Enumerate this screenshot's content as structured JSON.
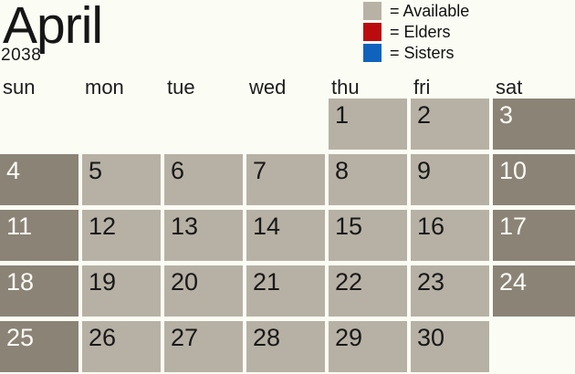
{
  "title": {
    "month": "April",
    "year": "2038"
  },
  "legend": {
    "items": [
      {
        "name": "available",
        "label": "= Available",
        "color": "#b8b2a6"
      },
      {
        "name": "elders",
        "label": "= Elders",
        "color": "#bb0b0e"
      },
      {
        "name": "sisters",
        "label": "= Sisters",
        "color": "#0f63bd"
      }
    ]
  },
  "colors": {
    "background": "#fbfdf4",
    "weekday_cell": "#b7b1a5",
    "weekend_cell": "#8a8376",
    "weekday_text": "#191919",
    "weekend_text": "#fcfbf5"
  },
  "calendar": {
    "day_headers": [
      "sun",
      "mon",
      "tue",
      "wed",
      "thu",
      "fri",
      "sat"
    ],
    "weeks": [
      [
        null,
        null,
        null,
        null,
        {
          "date": "1",
          "shade": "light"
        },
        {
          "date": "2",
          "shade": "light"
        },
        {
          "date": "3",
          "shade": "dark"
        }
      ],
      [
        {
          "date": "4",
          "shade": "dark"
        },
        {
          "date": "5",
          "shade": "light"
        },
        {
          "date": "6",
          "shade": "light"
        },
        {
          "date": "7",
          "shade": "light"
        },
        {
          "date": "8",
          "shade": "light"
        },
        {
          "date": "9",
          "shade": "light"
        },
        {
          "date": "10",
          "shade": "dark"
        }
      ],
      [
        {
          "date": "11",
          "shade": "dark"
        },
        {
          "date": "12",
          "shade": "light"
        },
        {
          "date": "13",
          "shade": "light"
        },
        {
          "date": "14",
          "shade": "light"
        },
        {
          "date": "15",
          "shade": "light"
        },
        {
          "date": "16",
          "shade": "light"
        },
        {
          "date": "17",
          "shade": "dark"
        }
      ],
      [
        {
          "date": "18",
          "shade": "dark"
        },
        {
          "date": "19",
          "shade": "light"
        },
        {
          "date": "20",
          "shade": "light"
        },
        {
          "date": "21",
          "shade": "light"
        },
        {
          "date": "22",
          "shade": "light"
        },
        {
          "date": "23",
          "shade": "light"
        },
        {
          "date": "24",
          "shade": "dark"
        }
      ],
      [
        {
          "date": "25",
          "shade": "dark"
        },
        {
          "date": "26",
          "shade": "light"
        },
        {
          "date": "27",
          "shade": "light"
        },
        {
          "date": "28",
          "shade": "light"
        },
        {
          "date": "29",
          "shade": "light"
        },
        {
          "date": "30",
          "shade": "light"
        },
        null
      ]
    ]
  }
}
